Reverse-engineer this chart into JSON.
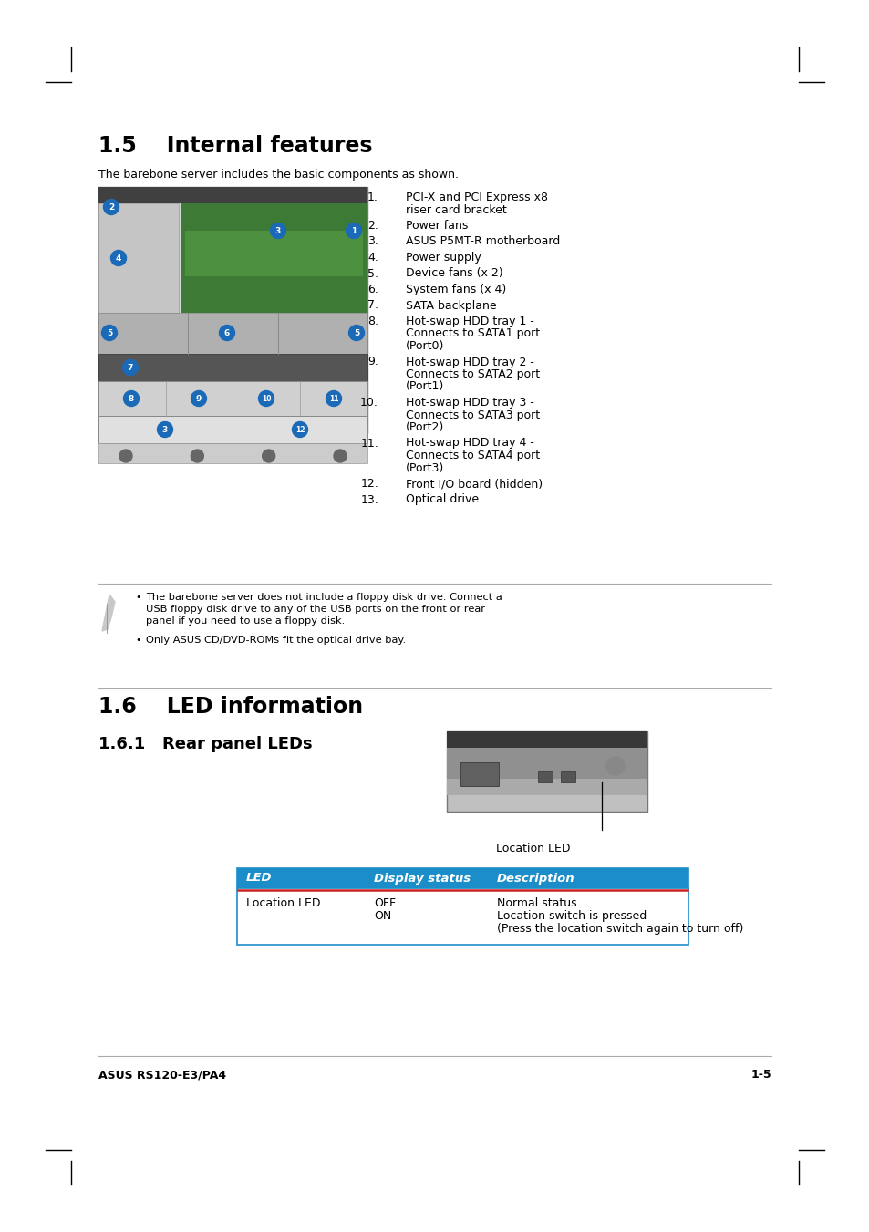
{
  "page_bg": "#ffffff",
  "section_15_title": "1.5    Internal features",
  "section_15_subtitle": "The barebone server includes the basic components as shown.",
  "items": [
    [
      "PCI-X and PCI Express x8",
      "riser card bracket"
    ],
    [
      "Power fans"
    ],
    [
      "ASUS P5MT-R motherboard"
    ],
    [
      "Power supply"
    ],
    [
      "Device fans (x 2)"
    ],
    [
      "System fans (x 4)"
    ],
    [
      "SATA backplane"
    ],
    [
      "Hot-swap HDD tray 1 -",
      "Connects to SATA1 port",
      "(Port0)"
    ],
    [
      "Hot-swap HDD tray 2 -",
      "Connects to SATA2 port",
      "(Port1)"
    ],
    [
      "Hot-swap HDD tray 3 -",
      "Connects to SATA3 port",
      "(Port2)"
    ],
    [
      "Hot-swap HDD tray 4 -",
      "Connects to SATA4 port",
      "(Port3)"
    ],
    [
      "Front I/O board (hidden)"
    ],
    [
      "Optical drive"
    ]
  ],
  "note_text1_lines": [
    "The barebone server does not include a floppy disk drive. Connect a",
    "USB floppy disk drive to any of the USB ports on the front or rear",
    "panel if you need to use a floppy disk."
  ],
  "note_text2": "Only ASUS CD/DVD-ROMs fit the optical drive bay.",
  "section_16_title": "1.6    LED information",
  "section_161_title": "1.6.1   Rear panel LEDs",
  "location_led_label": "Location LED",
  "table_header": [
    "LED",
    "Display status",
    "Description"
  ],
  "table_row_led": "Location LED",
  "table_row_status": [
    "OFF",
    "ON"
  ],
  "table_row_desc1": "Normal status",
  "table_row_desc2": "Location switch is pressed",
  "table_row_desc3": "(Press the location switch again to turn off)",
  "footer_left": "ASUS RS120-E3/PA4",
  "footer_right": "1-5",
  "table_header_bg": "#1b8dc8",
  "table_header_color": "#ffffff",
  "table_border_color": "#1b8dc8",
  "red_line_color": "#cc2222",
  "title_color": "#000000",
  "body_color": "#000000",
  "separator_color": "#aaaaaa"
}
